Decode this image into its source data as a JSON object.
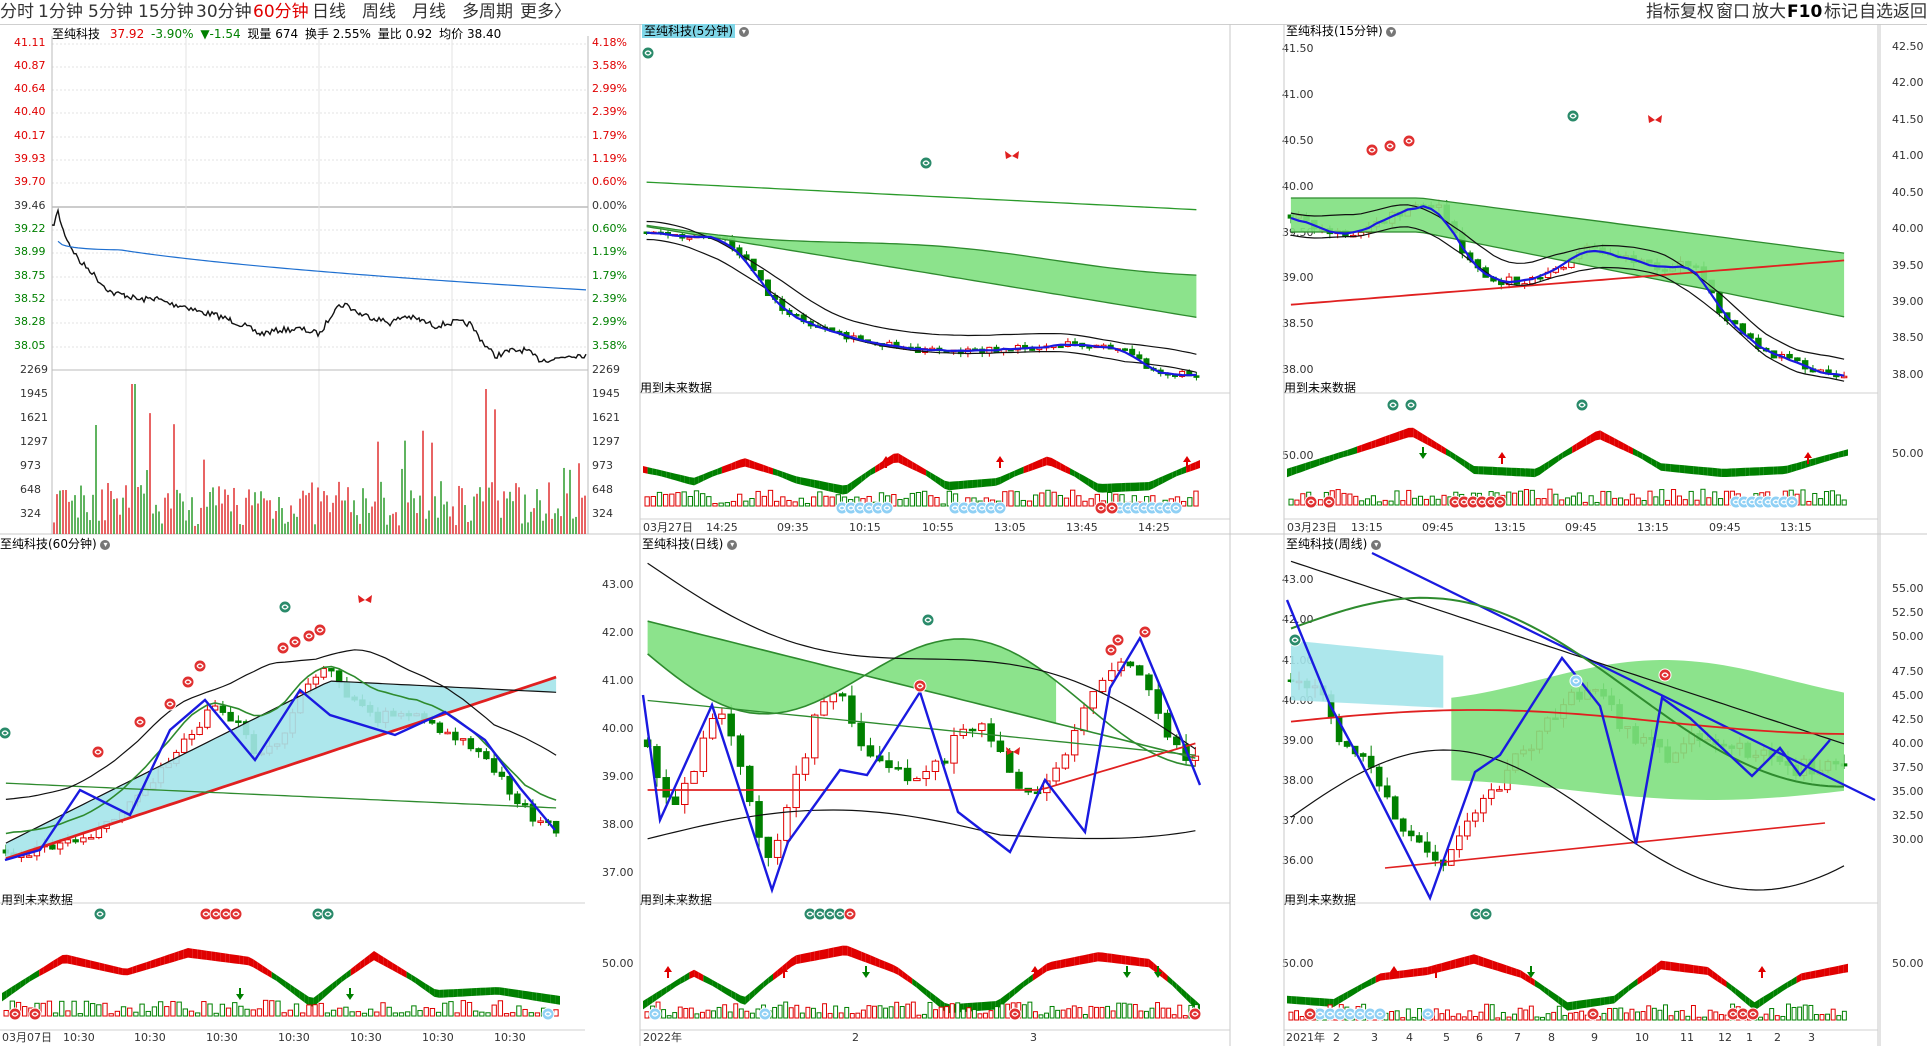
{
  "toolbar": {
    "periods": [
      "分时",
      "1分钟",
      "5分钟",
      "15分钟",
      "30分钟",
      "60分钟",
      "日线",
      "周线",
      "月线",
      "多周期",
      "更多〉"
    ],
    "active_period": "60分钟",
    "right_buttons": [
      "指标",
      "复权",
      "窗口",
      "放大",
      "F10",
      "标记",
      "自选",
      "返回"
    ]
  },
  "minute_panel": {
    "name": "至纯科技",
    "price": "37.92",
    "change_pct": "-3.90%",
    "change": "▼-1.54",
    "volume_now": "现量 674",
    "turnover": "换手 2.55%",
    "volume_ratio": "量比 0.92",
    "avg_price": "均价 38.40",
    "price_ticks": [
      "41.11",
      "40.87",
      "40.64",
      "40.40",
      "40.17",
      "39.93",
      "39.70",
      "39.46",
      "39.22",
      "38.99",
      "38.75",
      "38.52",
      "38.28",
      "38.05"
    ],
    "pct_ticks": [
      "4.18%",
      "3.58%",
      "2.99%",
      "2.39%",
      "1.79%",
      "1.19%",
      "0.60%",
      "0.00%",
      "0.60%",
      "1.19%",
      "1.79%",
      "2.39%",
      "2.99%",
      "3.58%"
    ],
    "vol_ticks": [
      "2269",
      "1945",
      "1621",
      "1297",
      "973",
      "648",
      "324"
    ]
  },
  "panels": {
    "m5": {
      "title": "至纯科技(5分钟)",
      "note": "用到未来数据",
      "x_labels": [
        "03月27日",
        "14:25",
        "09:35",
        "10:15",
        "10:55",
        "13:05",
        "13:45",
        "14:25"
      ]
    },
    "m15": {
      "title": "至纯科技(15分钟)",
      "note": "用到未来数据",
      "y_labels": [
        "41.50",
        "41.00",
        "40.50",
        "40.00",
        "39.50",
        "39.00",
        "38.50",
        "38.00"
      ],
      "osc_label": "50.00",
      "x_labels": [
        "03月23日",
        "13:15",
        "09:45",
        "13:15",
        "09:45",
        "13:15",
        "09:45",
        "13:15"
      ]
    },
    "right_axis_top": {
      "y_labels": [
        "42.50",
        "42.00",
        "41.50",
        "41.00",
        "40.50",
        "40.00",
        "39.50",
        "39.00",
        "38.50",
        "38.00"
      ],
      "osc_label": "50.00"
    },
    "m60": {
      "title": "至纯科技(60分钟)",
      "note": "用到未来数据",
      "x_labels": [
        "03月07日",
        "10:30",
        "10:30",
        "10:30",
        "10:30",
        "10:30",
        "10:30",
        "10:30"
      ]
    },
    "day": {
      "title": "至纯科技(日线)",
      "note": "用到未来数据",
      "y_labels": [
        "43.00",
        "42.00",
        "41.00",
        "40.00",
        "39.00",
        "38.00",
        "37.00"
      ],
      "osc_label": "50.00",
      "x_labels": [
        "2022年",
        "2",
        "3"
      ]
    },
    "week": {
      "title": "至纯科技(周线)",
      "note": "用到未来数据",
      "y_labels": [
        "43.00",
        "42.00",
        "41.00",
        "40.00",
        "39.00",
        "38.00",
        "37.00",
        "36.00"
      ],
      "osc_label": "50.00",
      "x_labels": [
        "2021年",
        "2",
        "3",
        "4",
        "5",
        "6",
        "7",
        "8",
        "9",
        "10",
        "11",
        "12",
        "1",
        "2",
        "3"
      ]
    },
    "right_axis_bottom": {
      "y_labels": [
        "55.00",
        "52.50",
        "50.00",
        "47.50",
        "45.00",
        "42.50",
        "40.00",
        "37.50",
        "35.00",
        "32.50",
        "30.00"
      ],
      "osc_label": "50.00"
    }
  },
  "colors": {
    "up": "#e00000",
    "down": "#008000",
    "avg_line": "#1e6fd0",
    "zigzag": "#1010d8",
    "band_green": "#7fe07f",
    "band_cyan": "#a4e4ea",
    "grid": "#d6d6d6"
  }
}
